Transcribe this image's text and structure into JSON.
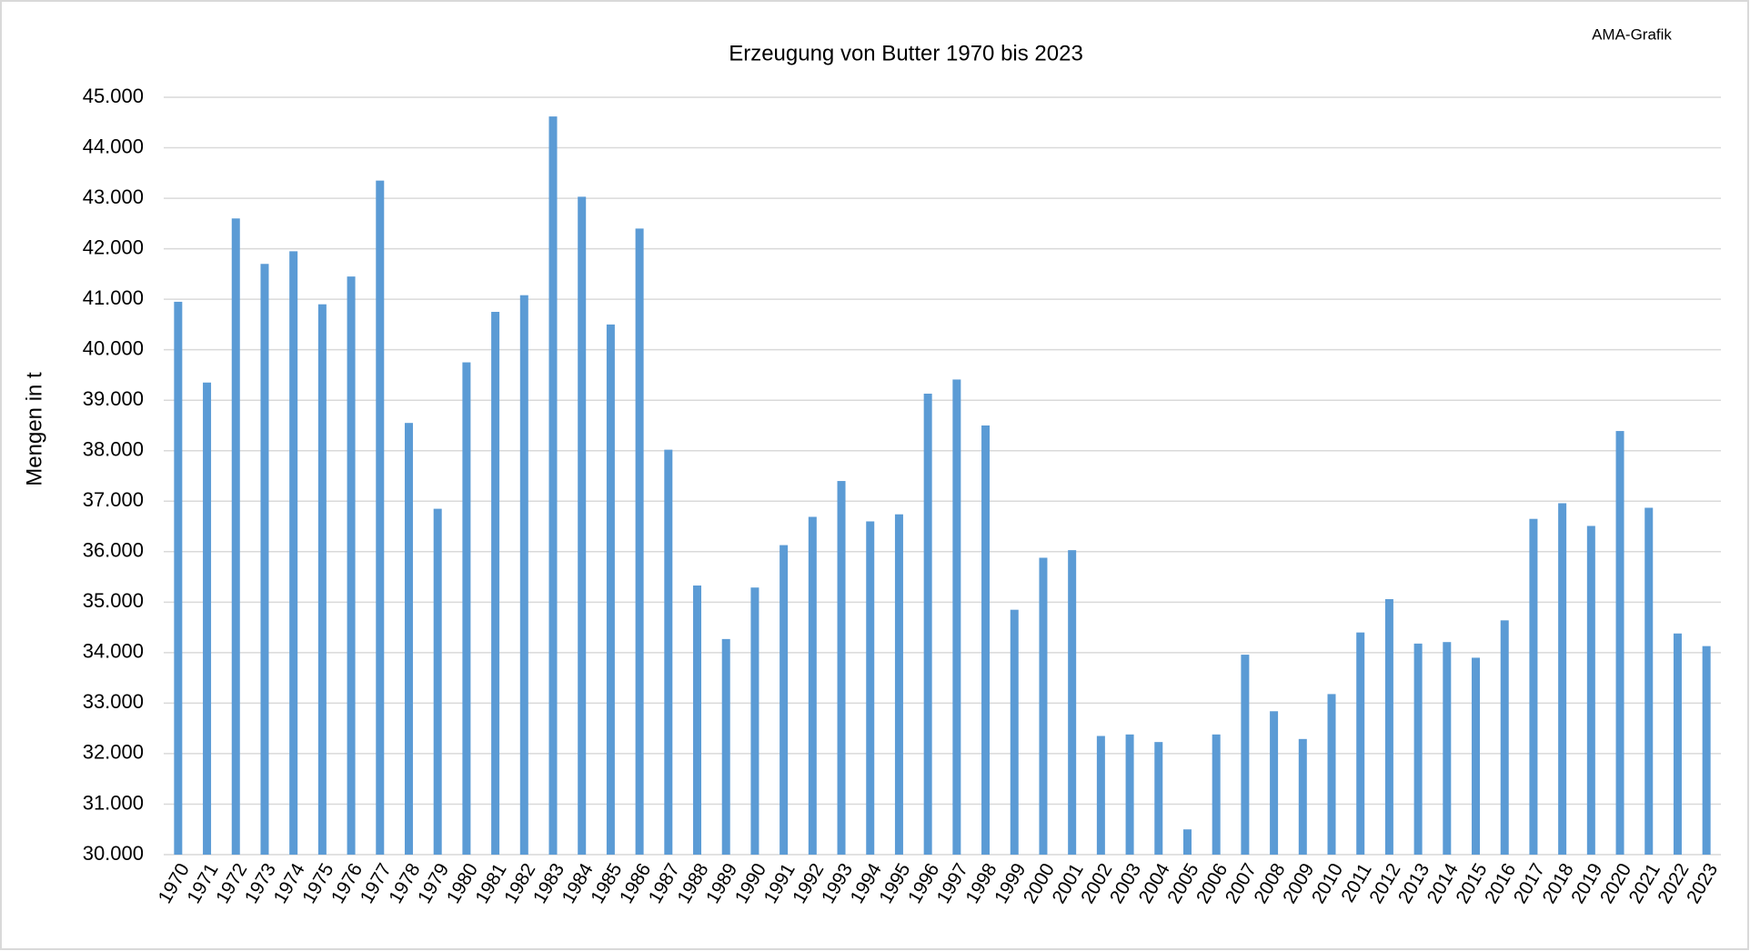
{
  "chart_data": {
    "type": "bar",
    "title": "Erzeugung von Butter 1970 bis 2023",
    "source": "AMA-Grafik",
    "y_label": "Mengen in t",
    "categories": [
      "1970",
      "1971",
      "1972",
      "1973",
      "1974",
      "1975",
      "1976",
      "1977",
      "1978",
      "1979",
      "1980",
      "1981",
      "1982",
      "1983",
      "1984",
      "1985",
      "1986",
      "1987",
      "1988",
      "1989",
      "1990",
      "1991",
      "1992",
      "1993",
      "1994",
      "1995",
      "1996",
      "1997",
      "1998",
      "1999",
      "2000",
      "2001",
      "2002",
      "2003",
      "2004",
      "2005",
      "2006",
      "2007",
      "2008",
      "2009",
      "2010",
      "2011",
      "2012",
      "2013",
      "2014",
      "2015",
      "2016",
      "2017",
      "2018",
      "2019",
      "2020",
      "2021",
      "2022",
      "2023"
    ],
    "values": [
      40950,
      39350,
      42600,
      41700,
      41950,
      40900,
      41450,
      43350,
      38550,
      36850,
      39750,
      40750,
      41080,
      44620,
      43030,
      40500,
      42400,
      38020,
      35330,
      34270,
      35290,
      36130,
      36690,
      37400,
      36600,
      36740,
      39130,
      39410,
      38500,
      34850,
      35880,
      36030,
      32350,
      32380,
      32230,
      30500,
      32380,
      33960,
      32840,
      32290,
      33180,
      34400,
      35060,
      34180,
      34210,
      33900,
      34640,
      36650,
      36960,
      36510,
      38390,
      36870,
      34380,
      34130
    ],
    "color": "#5b9bd5",
    "ylim": [
      30000,
      45000
    ],
    "yticks": [
      {
        "value": 30000,
        "label": "30.000"
      },
      {
        "value": 31000,
        "label": "31.000"
      },
      {
        "value": 32000,
        "label": "32.000"
      },
      {
        "value": 33000,
        "label": "33.000"
      },
      {
        "value": 34000,
        "label": "34.000"
      },
      {
        "value": 35000,
        "label": "35.000"
      },
      {
        "value": 36000,
        "label": "36.000"
      },
      {
        "value": 37000,
        "label": "37.000"
      },
      {
        "value": 38000,
        "label": "38.000"
      },
      {
        "value": 39000,
        "label": "39.000"
      },
      {
        "value": 40000,
        "label": "40.000"
      },
      {
        "value": 41000,
        "label": "41.000"
      },
      {
        "value": 42000,
        "label": "42.000"
      },
      {
        "value": 43000,
        "label": "43.000"
      },
      {
        "value": 44000,
        "label": "44.000"
      },
      {
        "value": 45000,
        "label": "45.000"
      }
    ],
    "grid": true
  }
}
